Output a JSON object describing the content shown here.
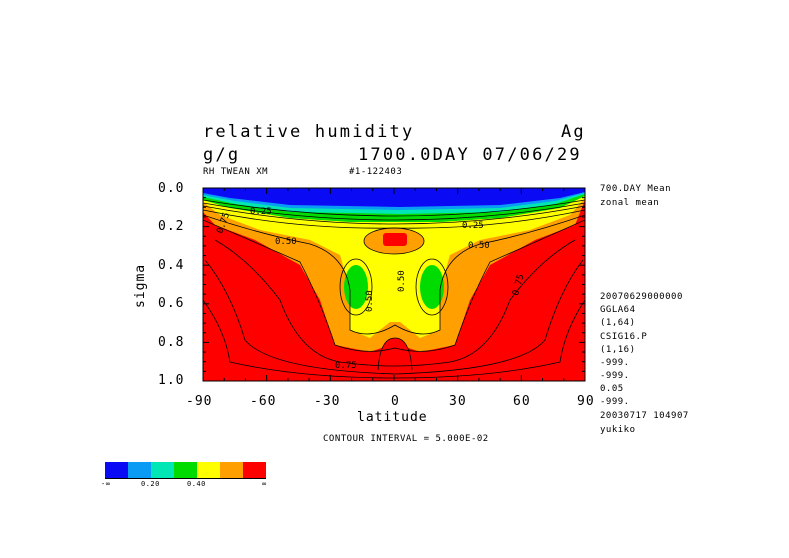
{
  "header": {
    "variable": "relative humidity",
    "experiment": "Ag",
    "units": "g/g",
    "time": "1700.0DAY 07/06/29",
    "sub_left": "RH TWEAN XM",
    "sub_mid": "#1-122403"
  },
  "side_panel": {
    "lines": [
      "700.DAY Mean",
      "zonal mean"
    ],
    "meta": [
      "20070629000000",
      "GGLA64",
      "(1,64)",
      "CSIG16.P",
      "(1,16)",
      "-999.",
      "-999.",
      "0.05",
      "-999.",
      "20030717 104907",
      "yukiko"
    ]
  },
  "footer": {
    "contour_interval": "CONTOUR INTERVAL = 5.000E-02"
  },
  "colorbar": {
    "colors": [
      "#0a0af5",
      "#0a9bf5",
      "#00e6b4",
      "#00dc00",
      "#ffff00",
      "#ffa000",
      "#ff0000"
    ],
    "labels": [
      "-∞",
      "0.20",
      "0.40",
      "∞"
    ]
  },
  "chart_data": {
    "type": "heatmap",
    "title": "relative humidity",
    "xlabel": "latitude",
    "ylabel": "sigma",
    "xlim": [
      -90,
      90
    ],
    "ylim": [
      1.0,
      0.0
    ],
    "x_ticks": [
      "-90",
      "-60",
      "-30",
      "0",
      "30",
      "60",
      "90"
    ],
    "y_ticks": [
      "0.0",
      "0.2",
      "0.4",
      "0.6",
      "0.8",
      "1.0"
    ],
    "contour_labels": [
      "0.25",
      "0.25",
      "0.50",
      "0.50",
      "0.50",
      "0.50",
      "0.75",
      "0.75",
      "0.75"
    ],
    "levels": [
      0.0,
      0.25,
      0.35,
      0.45,
      0.55,
      0.65,
      0.75,
      1.0
    ]
  }
}
